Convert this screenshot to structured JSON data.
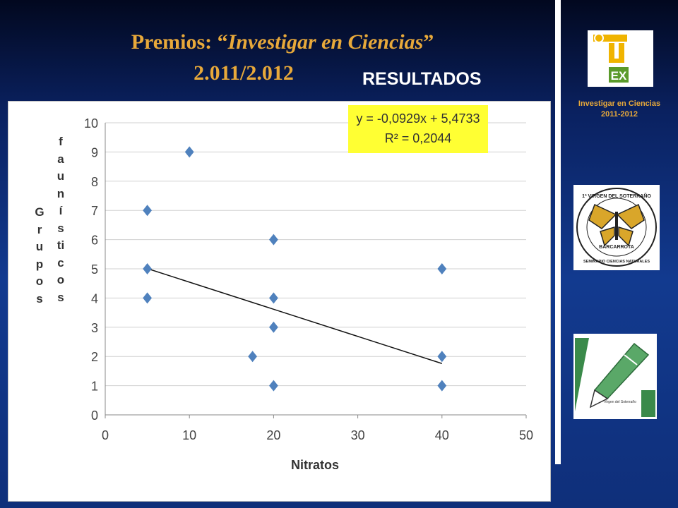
{
  "slide": {
    "title_prefix": "Premios: “",
    "title_italic": "Investigar en  Ciencias",
    "title_suffix": "”",
    "title_year": "2.011/2.012",
    "subtitle": "RESULTADOS"
  },
  "sidebar": {
    "caption_line1": "Investigar en Ciencias",
    "caption_line2": "2011-2012",
    "logos": [
      {
        "name": "uex-logo",
        "text": "EX",
        "colors": [
          "#f0b400",
          "#5a9a2a"
        ]
      },
      {
        "name": "seminario-logo",
        "text_top": "1ª VIRGEN DEL SOTERRAÑO",
        "text_mid": "BARCARROTA",
        "text_bottom": "SEMINARIO CIENCIAS NATURALES"
      },
      {
        "name": "pen-logo",
        "text": "Virgen del Soterraño"
      }
    ]
  },
  "chart_data": {
    "type": "scatter",
    "title": "",
    "xlabel": "Nitratos",
    "ylabel": "Grupos faunísticos",
    "ylabel_word1": "Grupos",
    "ylabel_word2": "faunísticos",
    "xlim": [
      0,
      50
    ],
    "ylim": [
      0,
      10
    ],
    "xticks": [
      0,
      10,
      20,
      30,
      40,
      50
    ],
    "yticks": [
      0,
      1,
      2,
      3,
      4,
      5,
      6,
      7,
      8,
      9,
      10
    ],
    "grid": true,
    "marker_color": "#4f81bd",
    "series": [
      {
        "x": [
          5,
          5,
          5,
          10,
          17.5,
          20,
          20,
          20,
          20,
          40,
          40,
          40
        ],
        "y": [
          7,
          5,
          4,
          9,
          2,
          6,
          4,
          3,
          1,
          5,
          2,
          1
        ]
      }
    ],
    "trendline": {
      "slope": -0.0929,
      "intercept": 5.4733,
      "x_range": [
        5,
        40
      ],
      "equation": "y = -0,0929x + 5,4733",
      "r2_label": "R² = 0,2044",
      "box_color": "#ffff33"
    }
  }
}
